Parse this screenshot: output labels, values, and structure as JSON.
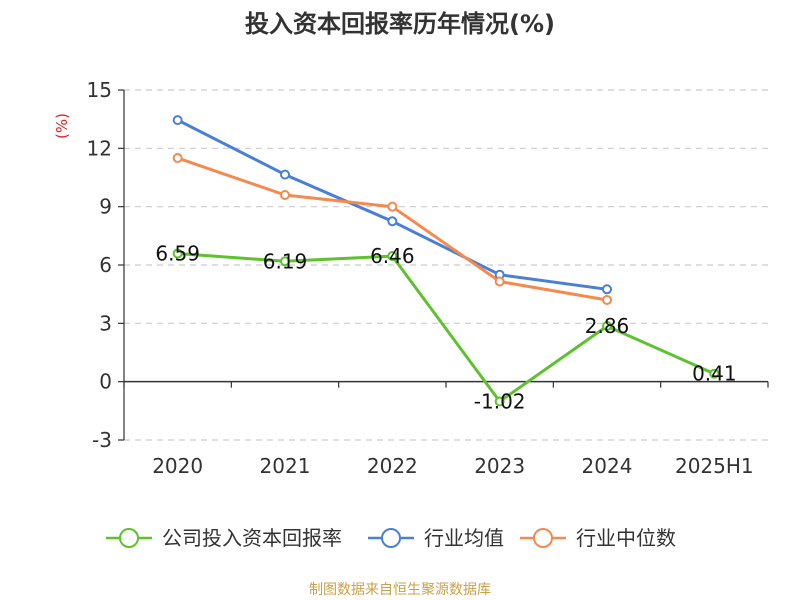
{
  "chart_data": {
    "type": "line",
    "title": "投入资本回报率历年情况(%)",
    "ylabel": "(%)",
    "xlabel": "",
    "categories": [
      "2020",
      "2021",
      "2022",
      "2023",
      "2024",
      "2025H1"
    ],
    "ylim": [
      -3,
      15
    ],
    "yticks": [
      -3,
      0,
      3,
      6,
      9,
      12,
      15
    ],
    "grid": true,
    "legend_position": "bottom",
    "series": [
      {
        "name": "公司投入资本回报率",
        "color": "#5ec12e",
        "values": [
          6.59,
          6.19,
          6.46,
          -1.02,
          2.86,
          0.41
        ],
        "labels": [
          "6.59",
          "6.19",
          "6.46",
          "-1.02",
          "2.86",
          "0.41"
        ],
        "show_labels": true
      },
      {
        "name": "行业均值",
        "color": "#4a7fd6",
        "values": [
          13.45,
          10.65,
          8.25,
          5.5,
          4.75,
          null
        ],
        "show_labels": false
      },
      {
        "name": "行业中位数",
        "color": "#f5894e",
        "values": [
          11.5,
          9.6,
          9.0,
          5.15,
          4.2,
          null
        ],
        "show_labels": false
      }
    ],
    "source": "制图数据来自恒生聚源数据库"
  },
  "colors": {
    "title": "#333333",
    "ylabel": "#e02020",
    "tick": "#333333",
    "grid": "#cccccc",
    "axis": "#333333",
    "source": "#c9a04a"
  }
}
